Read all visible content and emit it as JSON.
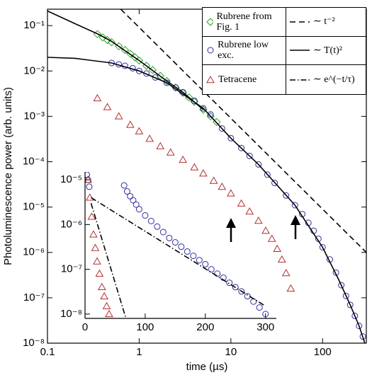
{
  "chart_data": [
    {
      "type": "scatter",
      "xlabel": "time  (µs)",
      "ylabel": "Photoluminescence power  (arb. units)",
      "xscale": "log",
      "yscale": "log",
      "xlim": [
        0.1,
        300
      ],
      "ylim": [
        1e-08,
        0.23
      ],
      "xticks": [
        0.1,
        1,
        10,
        100
      ],
      "yticks": [
        {
          "value": 1e-08,
          "label": "10⁻⁸"
        },
        {
          "value": 1e-07,
          "label": "10⁻⁷"
        },
        {
          "value": 1e-06,
          "label": "10⁻⁶"
        },
        {
          "value": 1e-05,
          "label": "10⁻⁵"
        },
        {
          "value": 0.0001,
          "label": "10⁻⁴"
        },
        {
          "value": 0.001,
          "label": "10⁻³"
        },
        {
          "value": 0.01,
          "label": "10⁻²"
        },
        {
          "value": 0.1,
          "label": "10⁻¹"
        }
      ],
      "legend": "upper right",
      "series": [
        {
          "name": "Rubrene from Fig. 1",
          "type": "scatter",
          "marker": "diamond",
          "color": "#2ca02c",
          "x": [
            0.35,
            0.4,
            0.45,
            0.5,
            0.6,
            0.7,
            0.8,
            0.9,
            1,
            1.2,
            1.4,
            1.7,
            2,
            2.5,
            3,
            3.5,
            4,
            5,
            6,
            7
          ],
          "values": [
            0.065,
            0.055,
            0.048,
            0.043,
            0.035,
            0.029,
            0.024,
            0.02,
            0.017,
            0.013,
            0.0105,
            0.0078,
            0.006,
            0.0043,
            0.0033,
            0.0026,
            0.0021,
            0.0014,
            0.001,
            0.00075
          ]
        },
        {
          "name": "Rubrene low exc.",
          "type": "scatter",
          "marker": "circle",
          "color": "#3030a0",
          "x": [
            0.5,
            0.6,
            0.7,
            0.85,
            1,
            1.2,
            1.5,
            2,
            2.5,
            3,
            4,
            5,
            6,
            8,
            10,
            13,
            16,
            20,
            25,
            30,
            40,
            50,
            60,
            70,
            80,
            90,
            100,
            120,
            140,
            160,
            180,
            200,
            225,
            250,
            275,
            300
          ],
          "values": [
            0.015,
            0.014,
            0.013,
            0.0115,
            0.01,
            0.0088,
            0.0072,
            0.0055,
            0.0043,
            0.0034,
            0.0022,
            0.0015,
            0.0011,
            0.00054,
            0.00033,
            0.0002,
            0.000134,
            8.7e-05,
            5.2e-05,
            3.4e-05,
            1.8e-05,
            1.1e-05,
            7e-06,
            4.5e-06,
            3e-06,
            2e-06,
            1.3e-06,
            7e-07,
            3.6e-07,
            1.9e-07,
            1.1e-07,
            7e-08,
            4e-08,
            2.4e-08,
            1.4e-08,
            8e-09
          ]
        },
        {
          "name": "Tetracene",
          "type": "scatter",
          "marker": "triangle",
          "color": "#b03030",
          "x": [
            0.35,
            0.45,
            0.6,
            0.8,
            1,
            1.3,
            1.7,
            2.2,
            3,
            4,
            5,
            6.5,
            8,
            10,
            13,
            16,
            20,
            24,
            28,
            32,
            36,
            40,
            45
          ],
          "values": [
            0.0025,
            0.0016,
            0.001,
            0.00065,
            0.00047,
            0.00032,
            0.00022,
            0.00016,
            0.00011,
            7.5e-05,
            5.5e-05,
            3.8e-05,
            2.8e-05,
            2e-05,
            1.2e-05,
            8e-06,
            5e-06,
            3e-06,
            2e-06,
            1.2e-06,
            7e-07,
            3.5e-07,
            1.6e-07
          ]
        },
        {
          "name": "∼ t⁻²",
          "type": "line",
          "dash": "dashed",
          "color": "#000000",
          "x": [
            0.63,
            300
          ],
          "values": [
            0.23,
            1e-06
          ]
        },
        {
          "name": "∼ T(t)²",
          "type": "line",
          "dash": "solid",
          "color": "#000000",
          "x": [
            0.1,
            0.2,
            0.35,
            0.5,
            1,
            2,
            3,
            5,
            null,
            0.1,
            0.2,
            0.5,
            1,
            2,
            5,
            10,
            20,
            50,
            100,
            150,
            200,
            250,
            300
          ],
          "values": [
            0.21,
            0.11,
            0.066,
            0.045,
            0.017,
            0.006,
            0.0034,
            0.0014,
            null,
            0.02,
            0.019,
            0.015,
            0.01,
            0.0055,
            0.0015,
            0.00033,
            8.7e-05,
            1.1e-05,
            1.3e-06,
            2.5e-07,
            7e-08,
            2.4e-08,
            8e-09
          ]
        }
      ]
    },
    {
      "type": "scatter",
      "xscale": "linear",
      "yscale": "log",
      "xlim": [
        0,
        318
      ],
      "ylim": [
        8e-09,
        1.5e-05
      ],
      "xticks": [
        0,
        100,
        200,
        300
      ],
      "yticks": [
        {
          "value": 1e-08,
          "label": "10⁻⁸"
        },
        {
          "value": 1e-07,
          "label": "10⁻⁷"
        },
        {
          "value": 1e-06,
          "label": "10⁻⁶"
        },
        {
          "value": 1e-05,
          "label": "10⁻⁵"
        }
      ],
      "series": [
        {
          "type": "scatter",
          "marker": "circle",
          "color": "#3030a0",
          "x": [
            3,
            5,
            7,
            65,
            70,
            75,
            80,
            85,
            90,
            100,
            110,
            120,
            130,
            140,
            150,
            160,
            170,
            180,
            190,
            200,
            210,
            220,
            230,
            240,
            250,
            260,
            270,
            280,
            290,
            300
          ],
          "values": [
            1.3e-05,
            1e-05,
            7e-06,
            7.5e-06,
            5.5e-06,
            4.3e-06,
            3.5e-06,
            2.8e-06,
            2.2e-06,
            1.6e-06,
            1.2e-06,
            9e-07,
            6.8e-07,
            5e-07,
            4e-07,
            3.2e-07,
            2.5e-07,
            2e-07,
            1.6e-07,
            1.3e-07,
            1e-07,
            8e-08,
            6.5e-08,
            5e-08,
            4e-08,
            3.2e-08,
            2.5e-08,
            1.9e-08,
            1.4e-08,
            1e-08
          ]
        },
        {
          "type": "scatter",
          "marker": "triangle",
          "color": "#b03030",
          "x": [
            5,
            8,
            11,
            14,
            17,
            20,
            24,
            28,
            32,
            36,
            40
          ],
          "values": [
            1e-05,
            4e-06,
            1.5e-06,
            6e-07,
            3e-07,
            1.5e-07,
            8e-08,
            4e-08,
            2.5e-08,
            1.5e-08,
            1e-08
          ]
        },
        {
          "name": "∼ e^(−t/τ)",
          "type": "line",
          "dash": "dashdot",
          "color": "#000000",
          "x": [
            10,
            300,
            null,
            10,
            68
          ],
          "values": [
            4e-06,
            1.5e-08,
            null,
            3e-06,
            8e-09
          ]
        }
      ]
    }
  ]
}
